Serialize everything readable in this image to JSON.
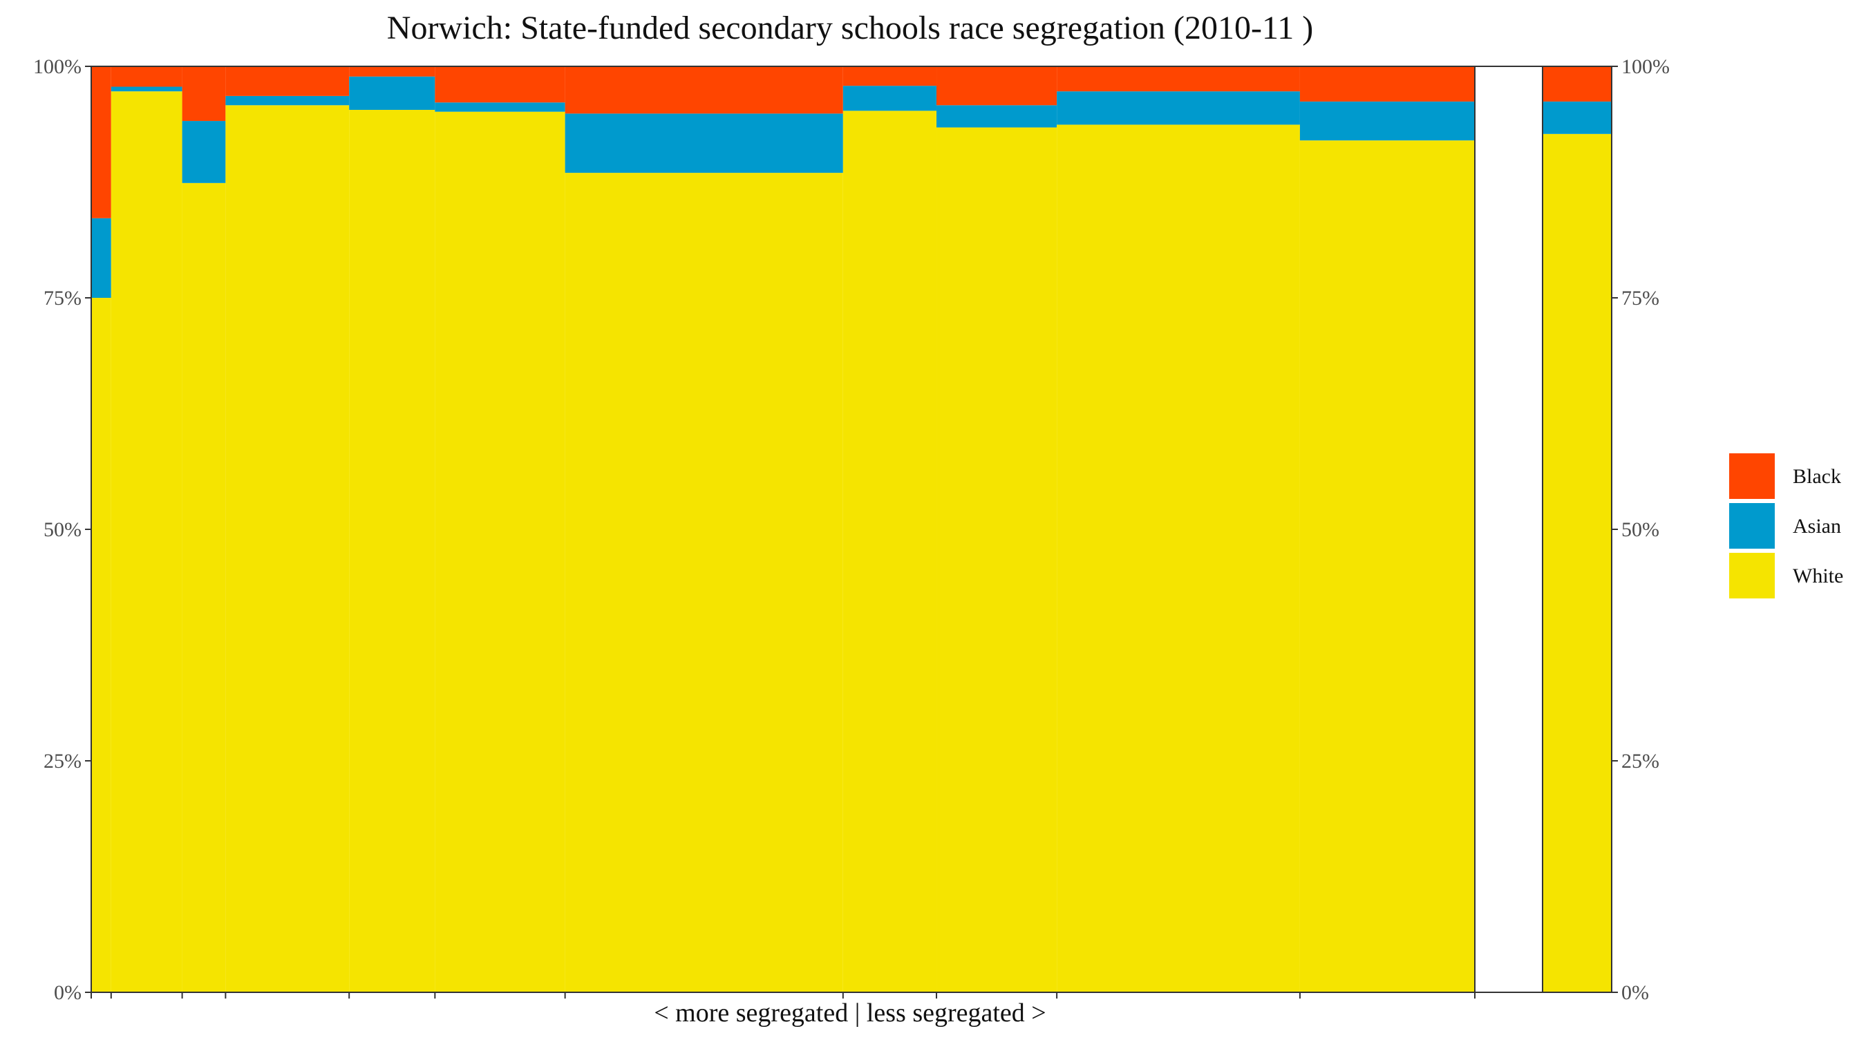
{
  "chart_data": {
    "type": "bar",
    "subtype": "stacked-100-percent-variable-width",
    "title": "Norwich: State-funded secondary schools race segregation (2010-11 )",
    "xlabel": "< more segregated | less segregated >",
    "ylabel": "",
    "ylim": [
      0,
      100
    ],
    "y_ticks": [
      "0%",
      "25%",
      "50%",
      "75%",
      "100%"
    ],
    "grid": false,
    "legend_position": "right",
    "stack_order": [
      "White",
      "Asian",
      "Black"
    ],
    "legend_order": [
      "Black",
      "Asian",
      "White"
    ],
    "colors": {
      "Black": "#ff4500",
      "Asian": "#009acd",
      "White": "#f5e400",
      "axis": "#333333",
      "tick_text": "#4d4d4d"
    },
    "schools": [
      {
        "share": 1.28,
        "White": 75.0,
        "Asian": 8.6,
        "Black": 16.4
      },
      {
        "share": 4.57,
        "White": 97.3,
        "Asian": 0.5,
        "Black": 2.2
      },
      {
        "share": 2.79,
        "White": 87.4,
        "Asian": 6.7,
        "Black": 5.9
      },
      {
        "share": 7.95,
        "White": 95.8,
        "Asian": 1.0,
        "Black": 3.2
      },
      {
        "share": 5.52,
        "White": 95.3,
        "Asian": 3.6,
        "Black": 1.1
      },
      {
        "share": 8.37,
        "White": 95.1,
        "Asian": 1.0,
        "Black": 3.9
      },
      {
        "share": 17.88,
        "White": 88.5,
        "Asian": 6.4,
        "Black": 5.1
      },
      {
        "share": 6.01,
        "White": 95.2,
        "Asian": 2.7,
        "Black": 2.1
      },
      {
        "share": 7.74,
        "White": 93.4,
        "Asian": 2.4,
        "Black": 4.2
      },
      {
        "share": 15.64,
        "White": 93.7,
        "Asian": 3.6,
        "Black": 2.7
      },
      {
        "share": 11.25,
        "White": 92.0,
        "Asian": 4.2,
        "Black": 3.8
      }
    ],
    "overall": {
      "White": 92.7,
      "Asian": 3.5,
      "Black": 3.8
    }
  }
}
